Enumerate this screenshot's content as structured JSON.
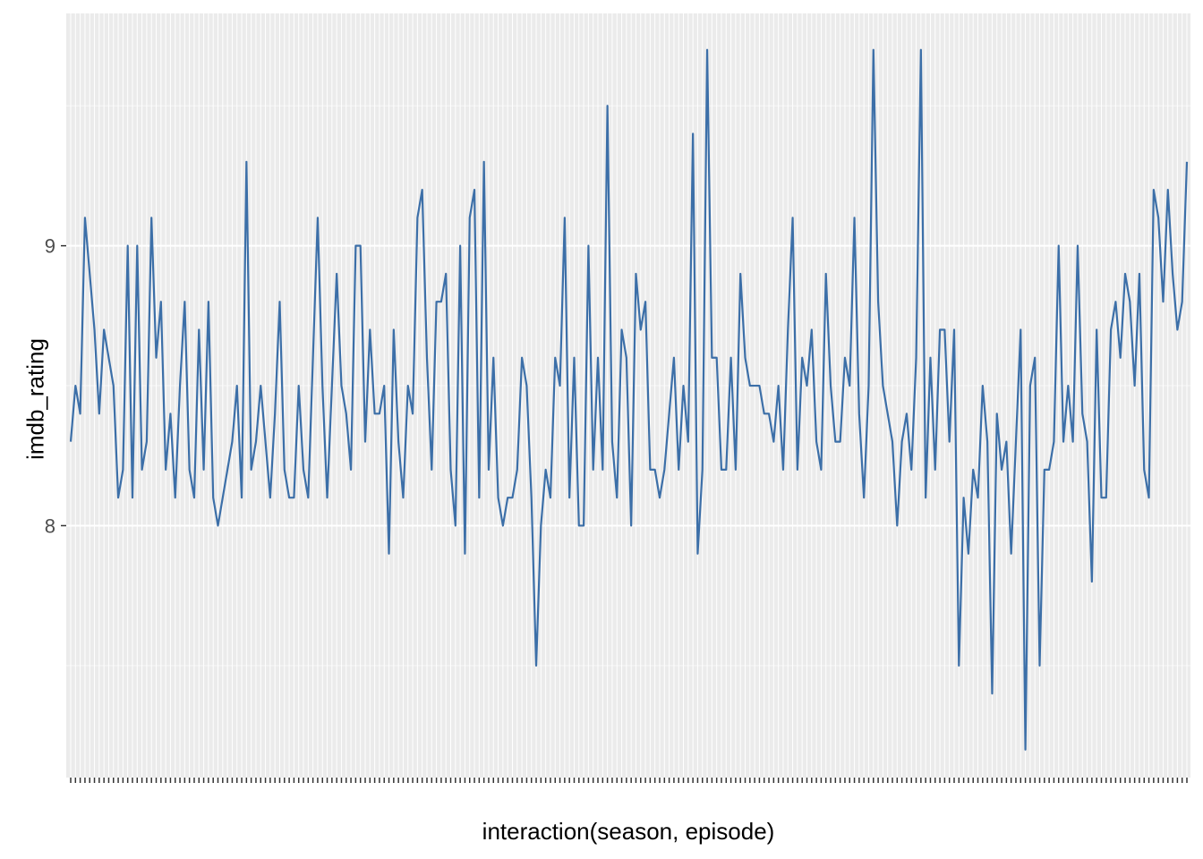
{
  "chart_data": {
    "type": "line",
    "xlabel": "interaction(season, episode)",
    "ylabel": "imdb_rating",
    "ylim": [
      7.1,
      9.83
    ],
    "yticks": [
      8,
      9
    ],
    "grid": true,
    "colors": {
      "line": "#3c6fa8",
      "panel": "#ebebeb",
      "gridline": "#ffffff"
    },
    "x_tick_labels_note": "overlapping tick labels per episode",
    "series": [
      {
        "values": [
          8.3,
          8.5,
          8.4,
          9.1,
          8.9,
          8.7,
          8.4,
          8.7,
          8.6,
          8.5,
          8.1,
          8.2,
          9.0,
          8.1,
          9.0,
          8.2,
          8.3,
          9.1,
          8.6,
          8.8,
          8.2,
          8.4,
          8.1,
          8.5,
          8.8,
          8.2,
          8.1,
          8.7,
          8.2,
          8.8,
          8.1,
          8.0,
          8.1,
          8.2,
          8.3,
          8.5,
          8.1,
          9.3,
          8.2,
          8.3,
          8.5,
          8.3,
          8.1,
          8.4,
          8.8,
          8.2,
          8.1,
          8.1,
          8.5,
          8.2,
          8.1,
          8.6,
          9.1,
          8.5,
          8.1,
          8.5,
          8.9,
          8.5,
          8.4,
          8.2,
          9.0,
          9.0,
          8.3,
          8.7,
          8.4,
          8.4,
          8.5,
          7.9,
          8.7,
          8.3,
          8.1,
          8.5,
          8.4,
          9.1,
          9.2,
          8.6,
          8.2,
          8.8,
          8.8,
          8.9,
          8.2,
          8.0,
          9.0,
          7.9,
          9.1,
          9.2,
          8.1,
          9.3,
          8.2,
          8.6,
          8.1,
          8.0,
          8.1,
          8.1,
          8.2,
          8.6,
          8.5,
          8.1,
          7.5,
          8.0,
          8.2,
          8.1,
          8.6,
          8.5,
          9.1,
          8.1,
          8.6,
          8.0,
          8.0,
          9.0,
          8.2,
          8.6,
          8.2,
          9.5,
          8.3,
          8.1,
          8.7,
          8.6,
          8.0,
          8.9,
          8.7,
          8.8,
          8.2,
          8.2,
          8.1,
          8.2,
          8.4,
          8.6,
          8.2,
          8.5,
          8.3,
          9.4,
          7.9,
          8.2,
          9.7,
          8.6,
          8.6,
          8.2,
          8.2,
          8.6,
          8.2,
          8.9,
          8.6,
          8.5,
          8.5,
          8.5,
          8.4,
          8.4,
          8.3,
          8.5,
          8.2,
          8.7,
          9.1,
          8.2,
          8.6,
          8.5,
          8.7,
          8.3,
          8.2,
          8.9,
          8.5,
          8.3,
          8.3,
          8.6,
          8.5,
          9.1,
          8.4,
          8.1,
          8.5,
          9.7,
          8.8,
          8.5,
          8.4,
          8.3,
          8.0,
          8.3,
          8.4,
          8.2,
          8.6,
          9.7,
          8.1,
          8.6,
          8.2,
          8.7,
          8.7,
          8.3,
          8.7,
          7.5,
          8.1,
          7.9,
          8.2,
          8.1,
          8.5,
          8.3,
          7.4,
          8.4,
          8.2,
          8.3,
          7.9,
          8.3,
          8.7,
          7.2,
          8.5,
          8.6,
          7.5,
          8.2,
          8.2,
          8.3,
          9.0,
          8.3,
          8.5,
          8.3,
          9.0,
          8.4,
          8.3,
          7.8,
          8.7,
          8.1,
          8.1,
          8.7,
          8.8,
          8.6,
          8.9,
          8.8,
          8.5,
          8.9,
          8.2,
          8.1,
          9.2,
          9.1,
          8.8,
          9.2,
          8.9,
          8.7,
          8.8,
          9.3
        ]
      }
    ]
  }
}
